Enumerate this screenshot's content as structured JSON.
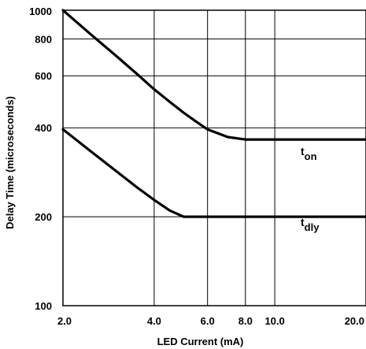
{
  "chart_data": {
    "type": "line",
    "xlabel": "LED Current (mA)",
    "ylabel": "Delay Time (microseconds)",
    "xscale": "log",
    "yscale": "log",
    "xlim": [
      2.0,
      20.0
    ],
    "ylim": [
      100,
      1000
    ],
    "xticks": [
      {
        "value": 2.0,
        "label": "2.0"
      },
      {
        "value": 4.0,
        "label": "4.0"
      },
      {
        "value": 6.0,
        "label": "6.0"
      },
      {
        "value": 8.0,
        "label": "8.0"
      },
      {
        "value": 10.0,
        "label": "10.0"
      },
      {
        "value": 20.0,
        "label": "20.0"
      }
    ],
    "yticks": [
      {
        "value": 100,
        "label": "100"
      },
      {
        "value": 200,
        "label": "200"
      },
      {
        "value": 400,
        "label": "400"
      },
      {
        "value": 600,
        "label": "600"
      },
      {
        "value": 800,
        "label": "800"
      },
      {
        "value": 1000,
        "label": "1000"
      }
    ],
    "grid": true,
    "series": [
      {
        "name": "t",
        "subscript": "on",
        "points": [
          {
            "x": 2.0,
            "y": 1000
          },
          {
            "x": 2.5,
            "y": 820
          },
          {
            "x": 3.0,
            "y": 700
          },
          {
            "x": 3.5,
            "y": 610
          },
          {
            "x": 4.0,
            "y": 540
          },
          {
            "x": 4.5,
            "y": 490
          },
          {
            "x": 5.0,
            "y": 450
          },
          {
            "x": 5.5,
            "y": 420
          },
          {
            "x": 6.0,
            "y": 395
          },
          {
            "x": 7.0,
            "y": 372
          },
          {
            "x": 8.0,
            "y": 365
          },
          {
            "x": 10.0,
            "y": 365
          },
          {
            "x": 20.0,
            "y": 365
          }
        ]
      },
      {
        "name": "t",
        "subscript": "dly",
        "points": [
          {
            "x": 2.0,
            "y": 395
          },
          {
            "x": 2.5,
            "y": 330
          },
          {
            "x": 3.0,
            "y": 285
          },
          {
            "x": 3.5,
            "y": 252
          },
          {
            "x": 4.0,
            "y": 228
          },
          {
            "x": 4.5,
            "y": 210
          },
          {
            "x": 5.0,
            "y": 200
          },
          {
            "x": 6.0,
            "y": 200
          },
          {
            "x": 8.0,
            "y": 200
          },
          {
            "x": 10.0,
            "y": 200
          },
          {
            "x": 20.0,
            "y": 200
          }
        ]
      }
    ]
  }
}
